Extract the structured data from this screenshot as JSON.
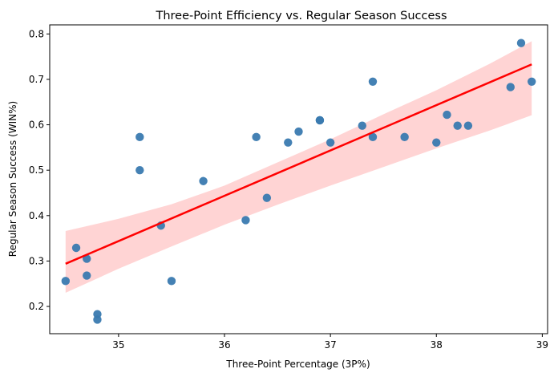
{
  "chart_data": {
    "type": "scatter",
    "title": "Three-Point Efficiency vs. Regular Season Success",
    "xlabel": "Three-Point Percentage (3P%)",
    "ylabel": "Regular Season Success (WIN%)",
    "xlim": [
      34.35,
      39.05
    ],
    "ylim": [
      0.14,
      0.82
    ],
    "xticks": [
      35,
      36,
      37,
      38,
      39
    ],
    "yticks": [
      0.2,
      0.3,
      0.4,
      0.5,
      0.6,
      0.7,
      0.8
    ],
    "xtick_labels": [
      "35",
      "36",
      "37",
      "38",
      "39"
    ],
    "ytick_labels": [
      "0.2",
      "0.3",
      "0.4",
      "0.5",
      "0.6",
      "0.7",
      "0.8"
    ],
    "grid": false,
    "points": [
      {
        "x": 34.5,
        "y": 0.256
      },
      {
        "x": 34.6,
        "y": 0.329
      },
      {
        "x": 34.7,
        "y": 0.305
      },
      {
        "x": 34.7,
        "y": 0.268
      },
      {
        "x": 34.8,
        "y": 0.183
      },
      {
        "x": 34.8,
        "y": 0.171
      },
      {
        "x": 35.2,
        "y": 0.573
      },
      {
        "x": 35.2,
        "y": 0.5
      },
      {
        "x": 35.4,
        "y": 0.378
      },
      {
        "x": 35.5,
        "y": 0.256
      },
      {
        "x": 35.8,
        "y": 0.476
      },
      {
        "x": 36.2,
        "y": 0.39
      },
      {
        "x": 36.3,
        "y": 0.573
      },
      {
        "x": 36.4,
        "y": 0.439
      },
      {
        "x": 36.6,
        "y": 0.561
      },
      {
        "x": 36.7,
        "y": 0.585
      },
      {
        "x": 36.9,
        "y": 0.61
      },
      {
        "x": 36.9,
        "y": 0.61
      },
      {
        "x": 37.0,
        "y": 0.561
      },
      {
        "x": 37.3,
        "y": 0.598
      },
      {
        "x": 37.4,
        "y": 0.695
      },
      {
        "x": 37.4,
        "y": 0.573
      },
      {
        "x": 37.7,
        "y": 0.573
      },
      {
        "x": 38.0,
        "y": 0.561
      },
      {
        "x": 38.1,
        "y": 0.622
      },
      {
        "x": 38.2,
        "y": 0.598
      },
      {
        "x": 38.3,
        "y": 0.598
      },
      {
        "x": 38.7,
        "y": 0.683
      },
      {
        "x": 38.8,
        "y": 0.78
      },
      {
        "x": 38.9,
        "y": 0.695
      }
    ],
    "regression": {
      "x": [
        34.5,
        38.9
      ],
      "y": [
        0.294,
        0.733
      ],
      "ci_x": [
        34.5,
        35.0,
        35.5,
        36.0,
        36.5,
        37.0,
        37.5,
        38.0,
        38.5,
        38.9
      ],
      "ci_upper": [
        0.366,
        0.393,
        0.425,
        0.466,
        0.517,
        0.568,
        0.623,
        0.676,
        0.734,
        0.784
      ],
      "ci_lower": [
        0.23,
        0.283,
        0.332,
        0.38,
        0.424,
        0.466,
        0.507,
        0.548,
        0.587,
        0.621
      ]
    },
    "colors": {
      "points": "#3a7ab0",
      "line": "#ff0000",
      "band": "#ffcccc"
    }
  }
}
